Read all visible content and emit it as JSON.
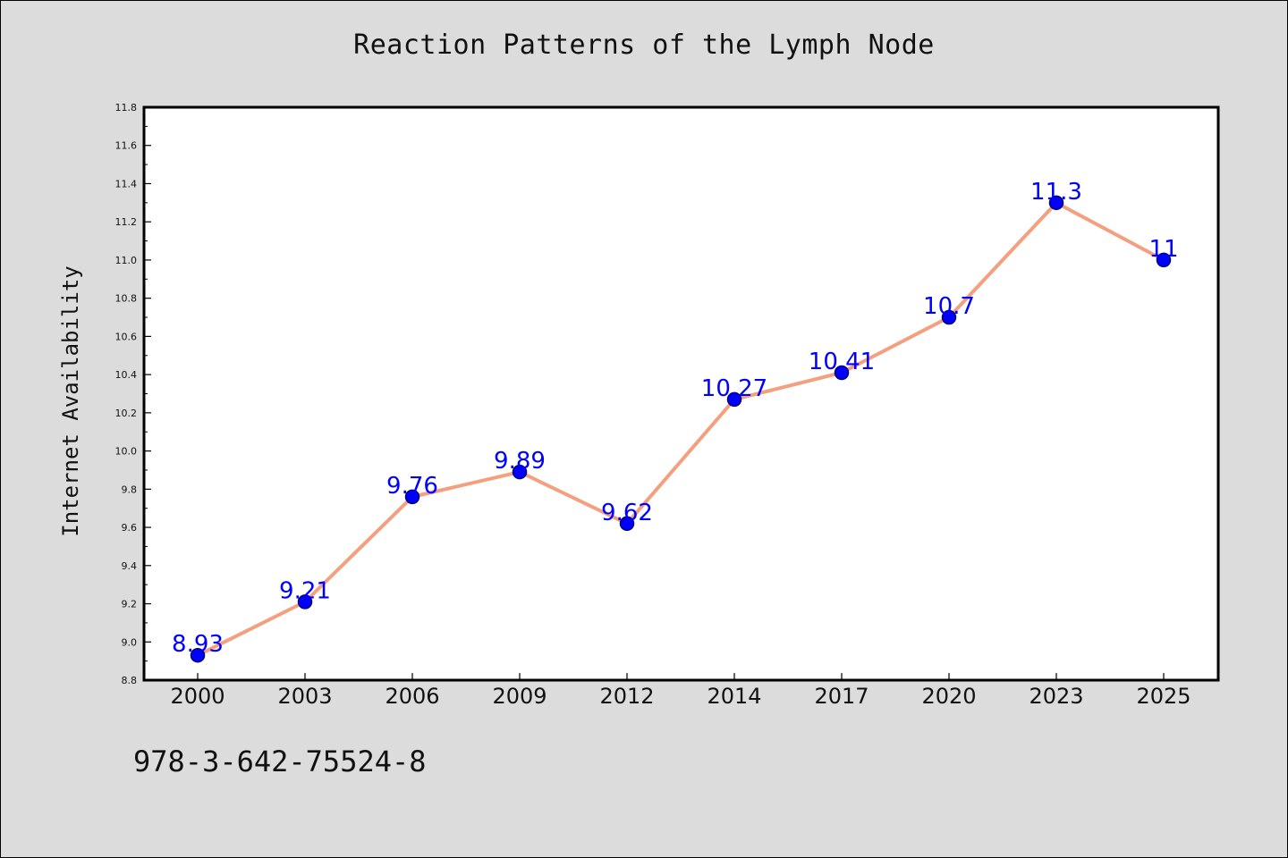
{
  "chart_data": {
    "type": "line",
    "title": "Reaction Patterns of the Lymph Node",
    "xlabel": "",
    "ylabel": "Internet Availability",
    "categories": [
      "2000",
      "2003",
      "2006",
      "2009",
      "2012",
      "2014",
      "2017",
      "2020",
      "2023",
      "2025"
    ],
    "series": [
      {
        "values": [
          8.93,
          9.21,
          9.76,
          9.89,
          9.62,
          10.27,
          10.41,
          10.7,
          11.3,
          11
        ],
        "data_labels": [
          "8.93",
          "9.21",
          "9.76",
          "9.89",
          "9.62",
          "10.27",
          "10.41",
          "10.7",
          "11.3",
          "11"
        ]
      }
    ],
    "ylim": [
      8.8,
      11.8
    ],
    "yticks": [
      "8.8",
      "9.0",
      "9.2",
      "9.4",
      "9.6",
      "9.8",
      "10.0",
      "10.2",
      "10.4",
      "10.6",
      "10.8",
      "11.0",
      "11.2",
      "11.4",
      "11.6",
      "11.8"
    ],
    "grid": false,
    "colors": {
      "line": "#f4a07e",
      "marker": "#0000ff",
      "marker_edge": "#00007a",
      "data_label": "#0000ff",
      "plot_background": "#ffffff",
      "figure_background": "#dcdcdc"
    }
  },
  "footer": {
    "code": "978-3-642-75524-8"
  }
}
